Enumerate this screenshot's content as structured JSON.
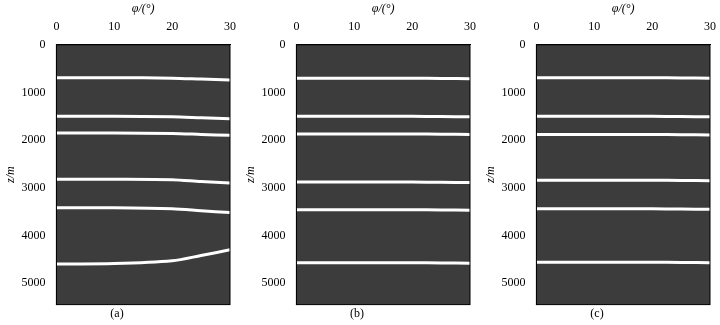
{
  "chart_data": [
    {
      "type": "line",
      "title": "(a)",
      "x_label": "φ/(°)",
      "y_label": "z/m",
      "x": [
        0,
        10,
        20,
        25,
        30
      ],
      "xlim": [
        0,
        30
      ],
      "xticks": [
        0,
        10,
        20,
        30
      ],
      "ylim": [
        0,
        5450
      ],
      "yticks": [
        0,
        1000,
        2000,
        3000,
        4000,
        5000
      ],
      "grid": false,
      "series": [
        {
          "color": "#ffffff",
          "values": [
            690,
            690,
            700,
            720,
            740
          ]
        },
        {
          "color": "#ffffff",
          "values": [
            1500,
            1500,
            1510,
            1530,
            1550
          ]
        },
        {
          "color": "#ffffff",
          "values": [
            1850,
            1850,
            1860,
            1880,
            1900
          ]
        },
        {
          "color": "#ffffff",
          "values": [
            2820,
            2820,
            2830,
            2870,
            2900
          ]
        },
        {
          "color": "#ffffff",
          "values": [
            3420,
            3420,
            3440,
            3480,
            3520
          ]
        },
        {
          "color": "#ffffff",
          "values": [
            4600,
            4590,
            4530,
            4420,
            4300
          ]
        }
      ]
    },
    {
      "type": "line",
      "title": "(b)",
      "x_label": "φ/(°)",
      "y_label": "z/m",
      "x": [
        0,
        10,
        20,
        25,
        30
      ],
      "xlim": [
        0,
        30
      ],
      "xticks": [
        0,
        10,
        20,
        30
      ],
      "ylim": [
        0,
        5450
      ],
      "yticks": [
        0,
        1000,
        2000,
        3000,
        4000,
        5000
      ],
      "grid": false,
      "series": [
        {
          "color": "#ffffff",
          "values": [
            700,
            700,
            700,
            705,
            710
          ]
        },
        {
          "color": "#ffffff",
          "values": [
            1500,
            1500,
            1500,
            1505,
            1510
          ]
        },
        {
          "color": "#ffffff",
          "values": [
            1870,
            1870,
            1870,
            1875,
            1880
          ]
        },
        {
          "color": "#ffffff",
          "values": [
            2880,
            2880,
            2880,
            2885,
            2890
          ]
        },
        {
          "color": "#ffffff",
          "values": [
            3460,
            3460,
            3460,
            3465,
            3470
          ]
        },
        {
          "color": "#ffffff",
          "values": [
            4570,
            4570,
            4570,
            4575,
            4580
          ]
        }
      ]
    },
    {
      "type": "line",
      "title": "(c)",
      "x_label": "φ/(°)",
      "y_label": "z/m",
      "x": [
        0,
        10,
        20,
        25,
        30
      ],
      "xlim": [
        0,
        30
      ],
      "xticks": [
        0,
        10,
        20,
        30
      ],
      "ylim": [
        0,
        5450
      ],
      "yticks": [
        0,
        1000,
        2000,
        3000,
        4000,
        5000
      ],
      "grid": false,
      "series": [
        {
          "color": "#ffffff",
          "values": [
            690,
            690,
            690,
            695,
            700
          ]
        },
        {
          "color": "#ffffff",
          "values": [
            1500,
            1500,
            1500,
            1505,
            1510
          ]
        },
        {
          "color": "#ffffff",
          "values": [
            1880,
            1880,
            1880,
            1885,
            1890
          ]
        },
        {
          "color": "#ffffff",
          "values": [
            2840,
            2840,
            2840,
            2845,
            2850
          ]
        },
        {
          "color": "#ffffff",
          "values": [
            3440,
            3440,
            3440,
            3445,
            3450
          ]
        },
        {
          "color": "#ffffff",
          "values": [
            4560,
            4560,
            4560,
            4565,
            4570
          ]
        }
      ]
    }
  ]
}
